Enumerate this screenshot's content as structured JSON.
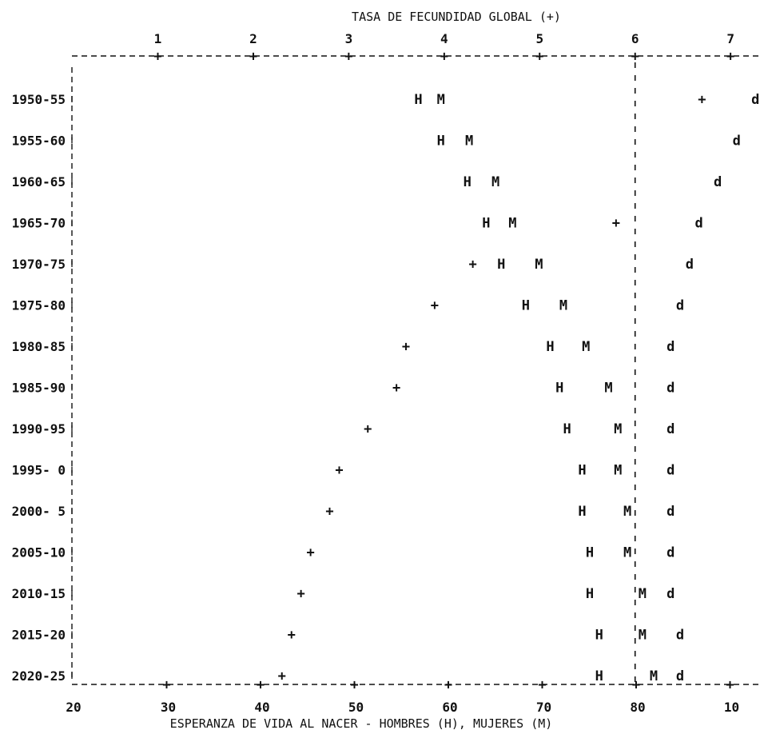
{
  "chart_data": {
    "type": "scatter",
    "top_axis": {
      "label": "TASA DE FECUNDIDAD GLOBAL (+)",
      "ticks": [
        "1",
        "2",
        "3",
        "4",
        "5",
        "6",
        "7"
      ],
      "range": [
        0.1,
        7.3
      ]
    },
    "bottom_axis": {
      "label": "ESPERANZA DE VIDA AL NACER - HOMBRES (H), MUJERES (M)",
      "ticks": [
        "20",
        "30",
        "40",
        "50",
        "60",
        "70",
        "80",
        "10"
      ],
      "range": [
        20,
        93
      ]
    },
    "reference_line": {
      "axis": "top",
      "value": 6
    },
    "periods": [
      "1950-55",
      "1955-60",
      "1960-65",
      "1965-70",
      "1970-75",
      "1975-80",
      "1980-85",
      "1985-90",
      "1990-95",
      "1995- 0",
      "2000- 5",
      "2005-10",
      "2010-15",
      "2015-20",
      "2020-25"
    ],
    "series": [
      {
        "symbol": "H",
        "axis": "bottom",
        "values": [
          56.8,
          59.2,
          62.0,
          64.0,
          65.6,
          68.2,
          70.8,
          71.8,
          72.6,
          74.2,
          74.2,
          75.0,
          75.0,
          76.0,
          76.0
        ]
      },
      {
        "symbol": "M",
        "axis": "bottom",
        "values": [
          59.2,
          62.2,
          65.0,
          66.8,
          69.6,
          72.2,
          74.6,
          77.0,
          78.0,
          78.0,
          79.0,
          79.0,
          80.6,
          80.6,
          81.8
        ]
      },
      {
        "symbol": "+",
        "axis": "top",
        "values": [
          6.7,
          null,
          null,
          5.8,
          4.3,
          3.9,
          3.6,
          3.5,
          3.2,
          2.9,
          2.8,
          2.6,
          2.5,
          2.4,
          2.3
        ]
      },
      {
        "symbol": "d",
        "axis": "bottom",
        "values": [
          92.6,
          90.6,
          88.6,
          86.6,
          85.6,
          84.6,
          83.6,
          83.6,
          83.6,
          83.6,
          83.6,
          83.6,
          83.6,
          84.6,
          84.6
        ]
      }
    ]
  }
}
